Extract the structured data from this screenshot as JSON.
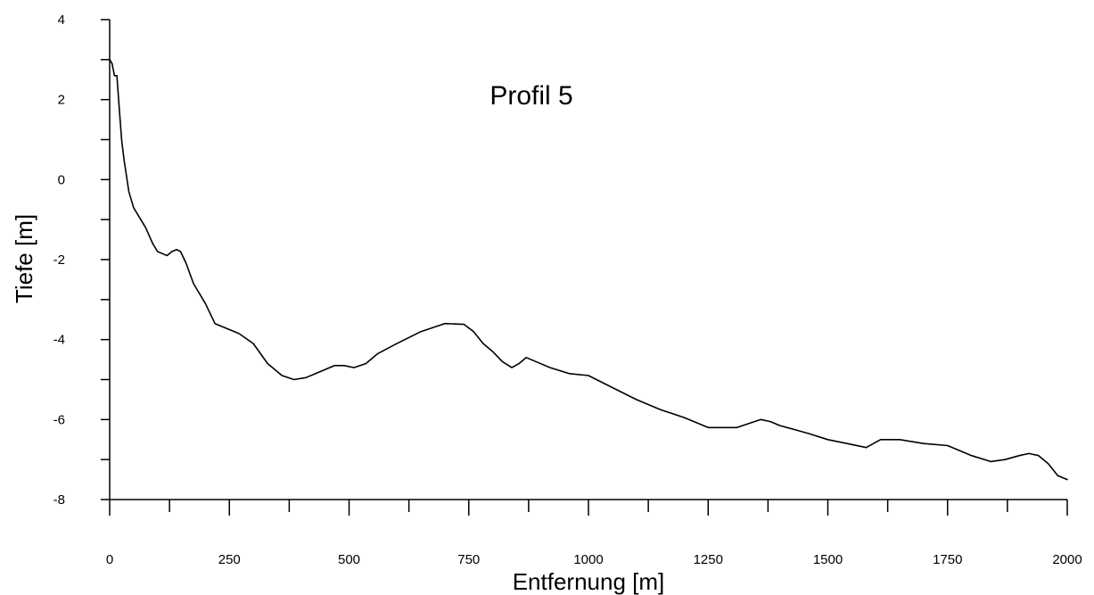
{
  "chart_data": {
    "type": "line",
    "title": "Profil 5",
    "xlabel": "Entfernung [m]",
    "ylabel": "Tiefe [m]",
    "xlim": [
      0,
      2000
    ],
    "ylim": [
      -8,
      4
    ],
    "x_ticks": [
      0,
      250,
      500,
      750,
      1000,
      1250,
      1500,
      1750,
      2000
    ],
    "x_tick_labels": [
      "0",
      "250",
      "500",
      "750",
      "1000",
      "1250",
      "1500",
      "1750",
      "2000"
    ],
    "x_minor_step": 125,
    "y_ticks": [
      -8,
      -6,
      -4,
      -2,
      0,
      2,
      4
    ],
    "y_tick_labels": [
      "-8",
      "-6",
      "-4",
      "-2",
      "0",
      "2",
      "4"
    ],
    "y_minor_step": 1,
    "grid": false,
    "line_color": "#000000",
    "series": [
      {
        "x": [
          0,
          5,
          10,
          15,
          20,
          25,
          30,
          40,
          50,
          60,
          75,
          90,
          100,
          110,
          120,
          130,
          140,
          148,
          160,
          175,
          200,
          220,
          240,
          270,
          300,
          330,
          360,
          385,
          410,
          440,
          470,
          490,
          510,
          535,
          560,
          600,
          650,
          700,
          740,
          760,
          780,
          800,
          820,
          840,
          855,
          870,
          890,
          920,
          960,
          1000,
          1050,
          1100,
          1150,
          1200,
          1250,
          1280,
          1310,
          1335,
          1360,
          1380,
          1400,
          1430,
          1460,
          1500,
          1540,
          1580,
          1610,
          1650,
          1700,
          1750,
          1800,
          1840,
          1870,
          1900,
          1920,
          1940,
          1960,
          1980,
          2000
        ],
        "y": [
          3.0,
          2.9,
          2.6,
          2.6,
          1.8,
          1.0,
          0.5,
          -0.3,
          -0.7,
          -0.9,
          -1.2,
          -1.6,
          -1.8,
          -1.85,
          -1.9,
          -1.8,
          -1.75,
          -1.8,
          -2.1,
          -2.6,
          -3.1,
          -3.6,
          -3.7,
          -3.85,
          -4.1,
          -4.6,
          -4.9,
          -5.0,
          -4.95,
          -4.8,
          -4.65,
          -4.65,
          -4.7,
          -4.6,
          -4.35,
          -4.1,
          -3.8,
          -3.6,
          -3.62,
          -3.8,
          -4.1,
          -4.3,
          -4.55,
          -4.7,
          -4.6,
          -4.45,
          -4.55,
          -4.7,
          -4.85,
          -4.9,
          -5.2,
          -5.5,
          -5.75,
          -5.95,
          -6.2,
          -6.2,
          -6.2,
          -6.1,
          -6.0,
          -6.05,
          -6.15,
          -6.25,
          -6.35,
          -6.5,
          -6.6,
          -6.7,
          -6.5,
          -6.5,
          -6.6,
          -6.65,
          -6.9,
          -7.05,
          -7.0,
          -6.9,
          -6.85,
          -6.9,
          -7.1,
          -7.4,
          -7.5
        ]
      }
    ]
  }
}
